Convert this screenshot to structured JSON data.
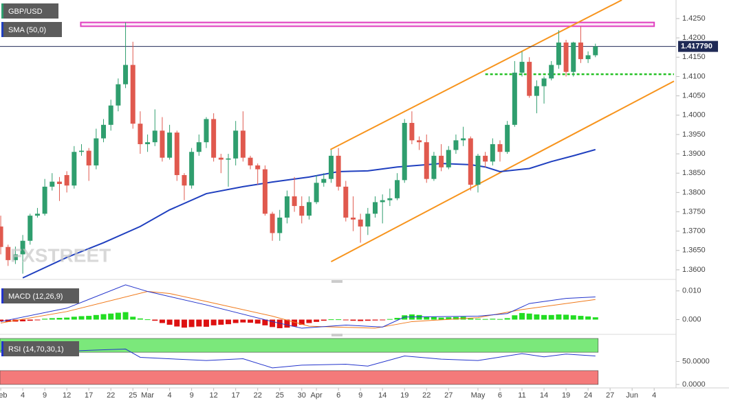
{
  "chart_data": {
    "type": "candlestick",
    "symbol": "GBP/USD",
    "watermark": "FXSTREET",
    "up_color": "#2f9e6e",
    "down_color": "#e0594e",
    "candles": [
      [
        1.3712,
        1.374,
        1.364,
        1.3659
      ],
      [
        1.3659,
        1.3665,
        1.361,
        1.3625
      ],
      [
        1.3625,
        1.366,
        1.3615,
        1.364
      ],
      [
        1.364,
        1.369,
        1.359,
        1.3675
      ],
      [
        1.3675,
        1.3745,
        1.3665,
        1.374
      ],
      [
        1.374,
        1.376,
        1.3735,
        1.3745
      ],
      [
        1.3745,
        1.3835,
        1.374,
        1.3815
      ],
      [
        1.3815,
        1.385,
        1.3805,
        1.3828
      ],
      [
        1.3828,
        1.384,
        1.3778,
        1.3822
      ],
      [
        1.3845,
        1.3855,
        1.38,
        1.3818
      ],
      [
        1.3818,
        1.392,
        1.381,
        1.3905
      ],
      [
        1.3905,
        1.3925,
        1.3895,
        1.3908
      ],
      [
        1.3908,
        1.3915,
        1.383,
        1.387
      ],
      [
        1.387,
        1.3965,
        1.386,
        1.394
      ],
      [
        1.394,
        1.399,
        1.393,
        1.3975
      ],
      [
        1.3975,
        1.404,
        1.396,
        1.4025
      ],
      [
        1.4025,
        1.4095,
        1.401,
        1.408
      ],
      [
        1.408,
        1.424,
        1.407,
        1.413
      ],
      [
        1.413,
        1.419,
        1.3965,
        1.3978
      ],
      [
        1.3978,
        1.401,
        1.39,
        1.3925
      ],
      [
        1.3925,
        1.395,
        1.3905,
        1.393
      ],
      [
        1.393,
        1.4015,
        1.392,
        1.396
      ],
      [
        1.396,
        1.3995,
        1.388,
        1.389
      ],
      [
        1.389,
        1.3975,
        1.3885,
        1.3955
      ],
      [
        1.3955,
        1.396,
        1.383,
        1.3845
      ],
      [
        1.3845,
        1.385,
        1.378,
        1.3818
      ],
      [
        1.3818,
        1.3915,
        1.381,
        1.3905
      ],
      [
        1.3905,
        1.395,
        1.3895,
        1.393
      ],
      [
        1.393,
        1.3995,
        1.3915,
        1.399
      ],
      [
        1.399,
        1.4005,
        1.388,
        1.389
      ],
      [
        1.389,
        1.39,
        1.385,
        1.3885
      ],
      [
        1.3885,
        1.39,
        1.3815,
        1.3888
      ],
      [
        1.3888,
        1.3985,
        1.387,
        1.396
      ],
      [
        1.396,
        1.401,
        1.388,
        1.389
      ],
      [
        1.389,
        1.3895,
        1.386,
        1.387
      ],
      [
        1.387,
        1.3875,
        1.382,
        1.386
      ],
      [
        1.386,
        1.387,
        1.374,
        1.3745
      ],
      [
        1.3745,
        1.375,
        1.3675,
        1.3695
      ],
      [
        1.3695,
        1.3755,
        1.3675,
        1.3735
      ],
      [
        1.3735,
        1.3805,
        1.372,
        1.379
      ],
      [
        1.379,
        1.384,
        1.375,
        1.3765
      ],
      [
        1.3765,
        1.379,
        1.372,
        1.374
      ],
      [
        1.374,
        1.379,
        1.373,
        1.3775
      ],
      [
        1.3775,
        1.3845,
        1.377,
        1.3825
      ],
      [
        1.3825,
        1.385,
        1.3815,
        1.3835
      ],
      [
        1.3835,
        1.391,
        1.3825,
        1.3895
      ],
      [
        1.3895,
        1.3915,
        1.3805,
        1.3815
      ],
      [
        1.3815,
        1.383,
        1.3725,
        1.3735
      ],
      [
        1.3735,
        1.379,
        1.37,
        1.373
      ],
      [
        1.373,
        1.3745,
        1.367,
        1.3712
      ],
      [
        1.3712,
        1.376,
        1.369,
        1.3745
      ],
      [
        1.3745,
        1.379,
        1.3735,
        1.3775
      ],
      [
        1.3775,
        1.3795,
        1.372,
        1.378
      ],
      [
        1.378,
        1.381,
        1.3765,
        1.3785
      ],
      [
        1.3785,
        1.385,
        1.378,
        1.3832
      ],
      [
        1.3832,
        1.399,
        1.3825,
        1.398
      ],
      [
        1.398,
        1.401,
        1.3925,
        1.3935
      ],
      [
        1.3935,
        1.3945,
        1.391,
        1.393
      ],
      [
        1.393,
        1.395,
        1.3825,
        1.3835
      ],
      [
        1.3835,
        1.3905,
        1.383,
        1.3895
      ],
      [
        1.3895,
        1.3925,
        1.3855,
        1.3865
      ],
      [
        1.3865,
        1.392,
        1.386,
        1.391
      ],
      [
        1.391,
        1.395,
        1.39,
        1.3935
      ],
      [
        1.3935,
        1.397,
        1.392,
        1.394
      ],
      [
        1.394,
        1.3945,
        1.3805,
        1.382
      ],
      [
        1.382,
        1.39,
        1.38,
        1.3895
      ],
      [
        1.3895,
        1.3905,
        1.3865,
        1.388
      ],
      [
        1.388,
        1.394,
        1.387,
        1.3925
      ],
      [
        1.3925,
        1.3935,
        1.388,
        1.3905
      ],
      [
        1.3905,
        1.3985,
        1.39,
        1.3975
      ],
      [
        1.3975,
        1.414,
        1.397,
        1.411
      ],
      [
        1.411,
        1.4165,
        1.41,
        1.4138
      ],
      [
        1.4138,
        1.415,
        1.4045,
        1.405
      ],
      [
        1.405,
        1.409,
        1.4005,
        1.4075
      ],
      [
        1.4075,
        1.41,
        1.403,
        1.4095
      ],
      [
        1.4095,
        1.414,
        1.409,
        1.413
      ],
      [
        1.413,
        1.422,
        1.412,
        1.4188
      ],
      [
        1.4188,
        1.4195,
        1.41,
        1.4112
      ],
      [
        1.4112,
        1.419,
        1.41,
        1.4188
      ],
      [
        1.4188,
        1.423,
        1.4135,
        1.4145
      ],
      [
        1.4145,
        1.4165,
        1.4135,
        1.4155
      ],
      [
        1.4155,
        1.4185,
        1.415,
        1.41779
      ]
    ],
    "xlim": [
      -0.1,
      91.7
    ],
    "xticks": [
      {
        "value": 0,
        "label": "Feb"
      },
      {
        "value": 3,
        "label": "4"
      },
      {
        "value": 6,
        "label": "9"
      },
      {
        "value": 9,
        "label": "12"
      },
      {
        "value": 12,
        "label": "17"
      },
      {
        "value": 15,
        "label": "22"
      },
      {
        "value": 18,
        "label": "25"
      },
      {
        "value": 20,
        "label": "Mar"
      },
      {
        "value": 23,
        "label": "4"
      },
      {
        "value": 26,
        "label": "9"
      },
      {
        "value": 29,
        "label": "12"
      },
      {
        "value": 32,
        "label": "17"
      },
      {
        "value": 35,
        "label": "22"
      },
      {
        "value": 38,
        "label": "25"
      },
      {
        "value": 41,
        "label": "30"
      },
      {
        "value": 43,
        "label": "Apr"
      },
      {
        "value": 46,
        "label": "6"
      },
      {
        "value": 49,
        "label": "9"
      },
      {
        "value": 52,
        "label": "14"
      },
      {
        "value": 55,
        "label": "19"
      },
      {
        "value": 58,
        "label": "22"
      },
      {
        "value": 61,
        "label": "27"
      },
      {
        "value": 65,
        "label": "May"
      },
      {
        "value": 68,
        "label": "6"
      },
      {
        "value": 71,
        "label": "11"
      },
      {
        "value": 74,
        "label": "14"
      },
      {
        "value": 77,
        "label": "19"
      },
      {
        "value": 80,
        "label": "24"
      },
      {
        "value": 83,
        "label": "27"
      },
      {
        "value": 86,
        "label": "Jun"
      },
      {
        "value": 89,
        "label": "4"
      }
    ],
    "ylim": [
      1.35786,
      1.4298
    ],
    "yticks": [
      {
        "value": 1.425,
        "label": "1.4250"
      },
      {
        "value": 1.42,
        "label": "1.4200"
      },
      {
        "value": 1.415,
        "label": "1.4150"
      },
      {
        "value": 1.41,
        "label": "1.4100"
      },
      {
        "value": 1.405,
        "label": "1.4050"
      },
      {
        "value": 1.4,
        "label": "1.4000"
      },
      {
        "value": 1.395,
        "label": "1.3950"
      },
      {
        "value": 1.39,
        "label": "1.3900"
      },
      {
        "value": 1.385,
        "label": "1.3850"
      },
      {
        "value": 1.38,
        "label": "1.3800"
      },
      {
        "value": 1.375,
        "label": "1.3750"
      },
      {
        "value": 1.37,
        "label": "1.3700"
      },
      {
        "value": 1.365,
        "label": "1.3650"
      },
      {
        "value": 1.36,
        "label": "1.3600"
      }
    ],
    "last_price": {
      "value": 1.41779,
      "label": "1.417790"
    },
    "sma": {
      "name": "SMA (50,0)",
      "color": "#1f3fbf",
      "x": [
        3,
        9,
        14,
        19,
        23,
        28,
        33,
        37,
        42,
        46,
        50,
        54,
        60,
        64,
        66,
        68,
        72,
        75,
        78,
        81
      ],
      "values": [
        1.3579,
        1.3632,
        1.367,
        1.3712,
        1.3755,
        1.3797,
        1.3815,
        1.3827,
        1.384,
        1.3854,
        1.3856,
        1.3866,
        1.3875,
        1.3872,
        1.3866,
        1.3854,
        1.3862,
        1.388,
        1.3895,
        1.3911
      ]
    },
    "resistance_box": {
      "color": "#e040c0",
      "xlim": [
        10.9,
        89
      ],
      "ylim": [
        1.423,
        1.424
      ]
    },
    "support_line": {
      "color": "#22c022",
      "x": [
        66,
        91.7
      ],
      "value": 1.4106
    },
    "channel": {
      "color": "#f7941d",
      "upper": {
        "x": [
          44.9,
          84.6
        ],
        "values": [
          1.3911,
          1.4298
        ]
      },
      "lower": {
        "x": [
          45,
          91.7
        ],
        "values": [
          1.3621,
          1.4088
        ]
      }
    },
    "macd": {
      "name": "MACD (12,26,9)",
      "ylim": [
        -0.0049,
        0.0128
      ],
      "yticks": [
        {
          "value": 0.01,
          "label": "0.010"
        },
        {
          "value": 0,
          "label": "0.000"
        }
      ],
      "pos_color": "#22dd22",
      "neg_color": "#dd1111",
      "histogram": [
        -0.0006,
        -0.0008,
        -0.0007,
        -0.0006,
        -0.0004,
        -0.0002,
        0.0003,
        0.0005,
        0.0006,
        0.0007,
        0.001,
        0.0012,
        0.0013,
        0.0016,
        0.0019,
        0.0021,
        0.0024,
        0.0026,
        0.001,
        0.0004,
        0.0001,
        -0.0004,
        -0.0012,
        -0.0018,
        -0.0024,
        -0.0028,
        -0.0026,
        -0.0024,
        -0.0025,
        -0.002,
        -0.0018,
        -0.0016,
        -0.0012,
        -0.001,
        -0.0011,
        -0.0014,
        -0.002,
        -0.0026,
        -0.003,
        -0.0028,
        -0.0024,
        -0.0018,
        -0.0012,
        -0.0008,
        -0.0004,
        0.0001,
        0.0001,
        -0.0002,
        -0.0004,
        -0.0005,
        -0.0004,
        -0.0003,
        -0.0001,
        0.0002,
        0.0006,
        0.0015,
        0.0018,
        0.0016,
        0.001,
        0.0009,
        0.0007,
        0.0008,
        0.0009,
        0.001,
        0.0004,
        0.0003,
        0.0002,
        0.0003,
        0.0002,
        0.0005,
        0.0015,
        0.0023,
        0.0021,
        0.0018,
        0.0016,
        0.0016,
        0.0018,
        0.0017,
        0.0015,
        0.0013,
        0.0011,
        0.0008
      ],
      "macd": {
        "color": "#2233cc",
        "x": [
          0,
          9,
          17,
          20,
          28,
          37,
          41,
          47,
          52,
          55,
          65,
          69,
          72,
          77,
          81
        ],
        "values": [
          -0.0007,
          0.004,
          0.0121,
          0.0098,
          0.0051,
          -0.0007,
          -0.003,
          -0.0019,
          -0.0026,
          0.0009,
          0.0012,
          0.0021,
          0.0056,
          0.0074,
          0.0079
        ]
      },
      "signal": {
        "color": "#f07818",
        "x": [
          0,
          9,
          20,
          23,
          28,
          37,
          42,
          51,
          56,
          65,
          71,
          81
        ],
        "values": [
          -0.0012,
          0.0028,
          0.0098,
          0.0091,
          0.0063,
          0.0012,
          -0.0023,
          -0.003,
          -0.0007,
          0.0007,
          0.0035,
          0.007
        ]
      }
    },
    "rsi": {
      "name": "RSI (14,70,30,1)",
      "ylim": [
        -4.5,
        104.5
      ],
      "yticks": [
        {
          "value": 50,
          "label": "50.0000"
        },
        {
          "value": 0,
          "label": "0.0000"
        }
      ],
      "upper_zone": [
        70,
        100
      ],
      "upper_color": "#7be87b",
      "lower_zone": [
        0,
        30
      ],
      "lower_color": "#f47a7a",
      "line": {
        "color": "#2233cc",
        "x": [
          0,
          5,
          10,
          17,
          19,
          24,
          28,
          33,
          37,
          41,
          47,
          50,
          55,
          60,
          65,
          71,
          74,
          77,
          81
        ],
        "values": [
          74,
          70,
          73,
          77,
          59,
          55,
          52,
          56,
          36,
          42,
          44,
          40,
          62,
          55,
          52,
          67,
          60,
          66,
          62
        ]
      }
    }
  }
}
